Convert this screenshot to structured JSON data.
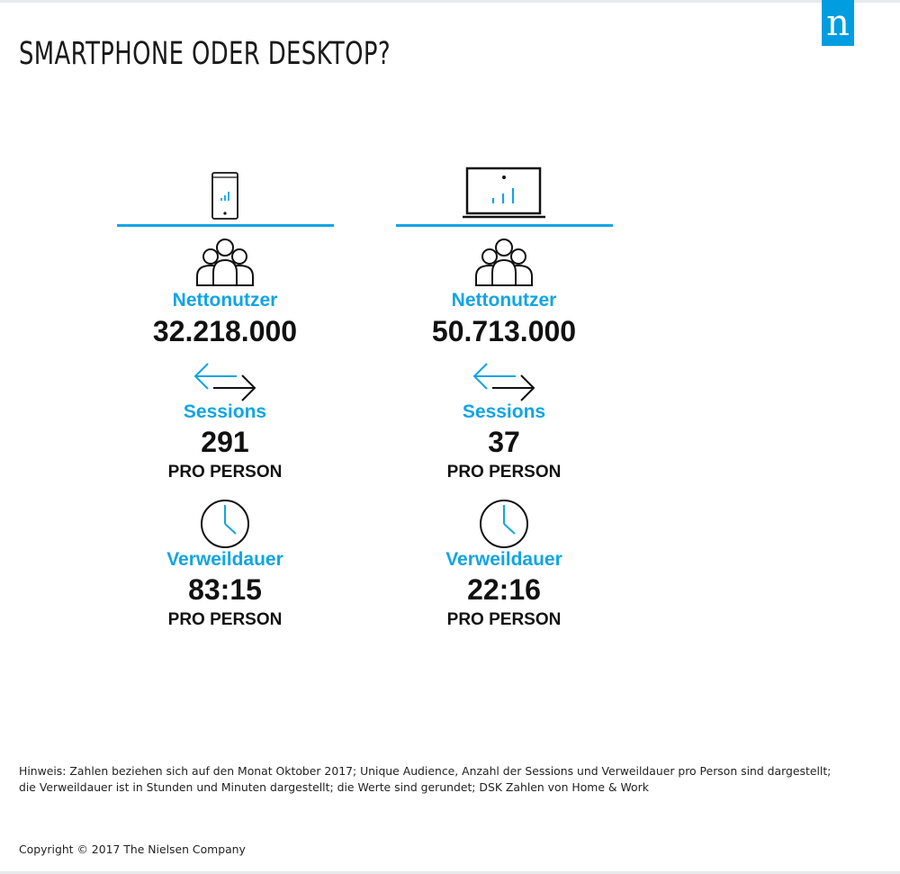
{
  "header": {
    "title": "SMARTPHONE ODER DESKTOP?",
    "logo_letter": "n",
    "brand_color": "#009de0"
  },
  "colors": {
    "accent": "#11a5e4",
    "text": "#111111"
  },
  "columns": [
    {
      "device_icon": "smartphone-icon",
      "users_label": "Nettonutzer",
      "users_value": "32.218.000",
      "sessions_label": "Sessions",
      "sessions_value": "291",
      "sessions_unit": "PRO PERSON",
      "time_label": "Verweildauer",
      "time_value": "83:15",
      "time_unit": "PRO PERSON"
    },
    {
      "device_icon": "laptop-icon",
      "users_label": "Nettonutzer",
      "users_value": "50.713.000",
      "sessions_label": "Sessions",
      "sessions_value": "37",
      "sessions_unit": "PRO PERSON",
      "time_label": "Verweildauer",
      "time_value": "22:16",
      "time_unit": "PRO PERSON"
    }
  ],
  "footer": {
    "note_line1": "Hinweis: Zahlen beziehen sich auf den Monat Oktober 2017; Unique Audience, Anzahl der Sessions  und Verweildauer pro Person sind dargestellt;",
    "note_line2": "die Verweildauer ist in Stunden und Minuten dargestellt; die Werte sind gerundet; DSK Zahlen von Home & Work",
    "copyright": "Copyright © 2017 The Nielsen Company"
  }
}
